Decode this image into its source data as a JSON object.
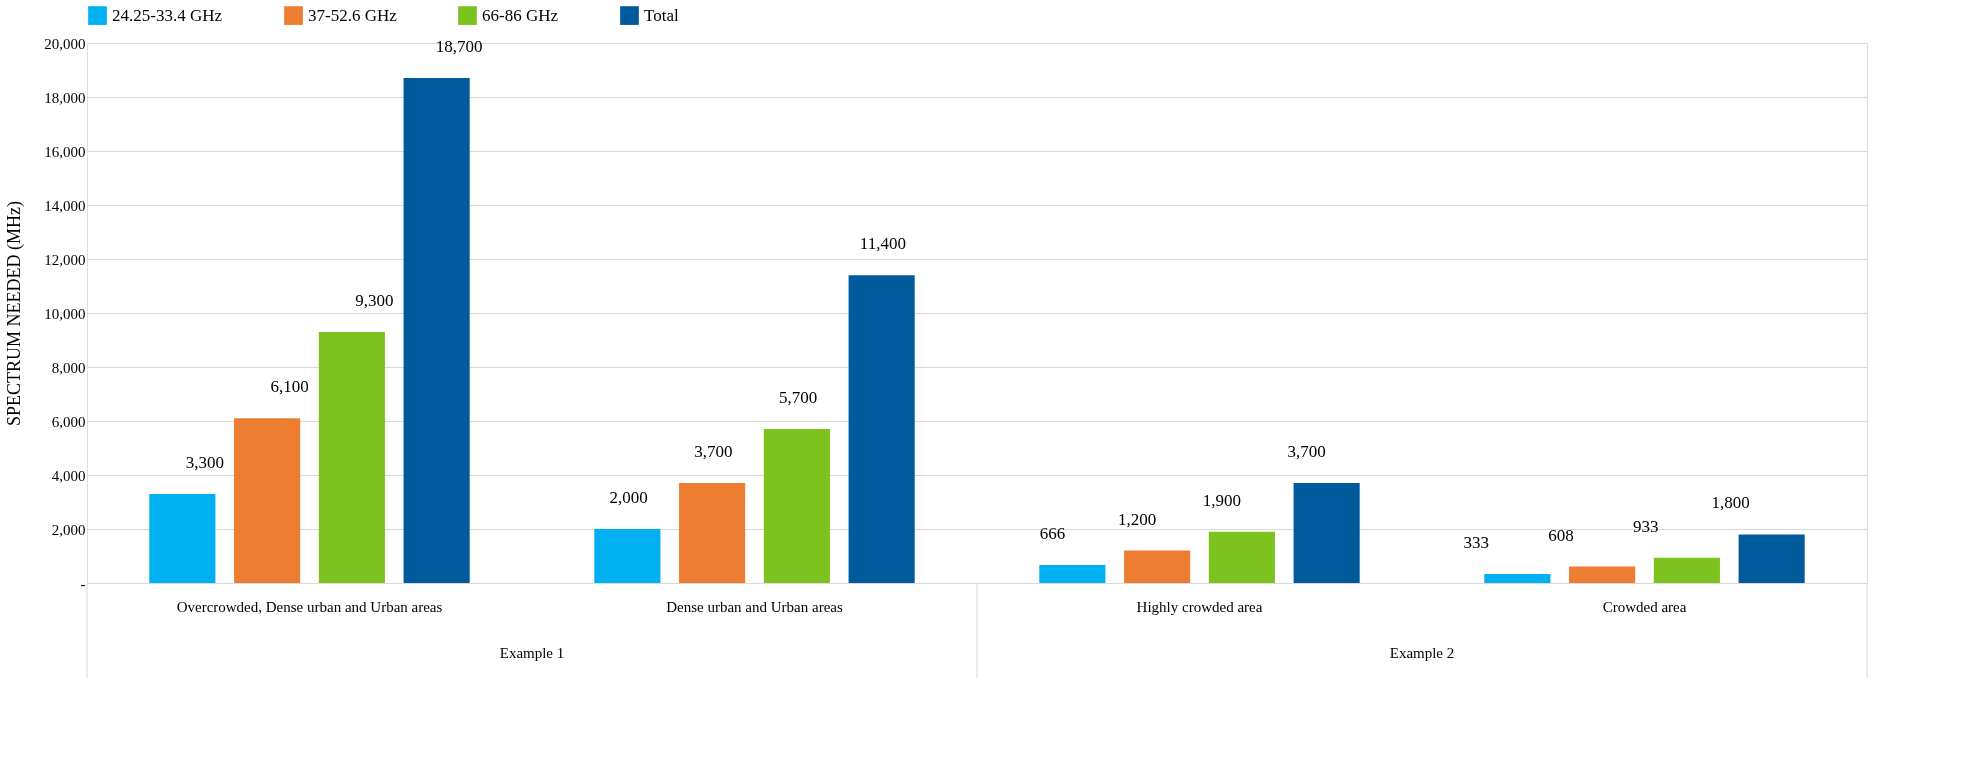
{
  "chart_data": {
    "type": "bar",
    "ylabel": "SPECTRUM NEEDED (MHz)",
    "categories": [
      "Overcrowded, Dense urban and Urban areas",
      "Dense urban and Urban areas",
      "Highly crowded area",
      "Crowded area"
    ],
    "series": [
      {
        "name": "24.25-33.4 GHz",
        "color": "#00b0f0",
        "values": [
          3300,
          2000,
          666,
          333
        ],
        "value_labels": [
          "3,300",
          "2,000",
          "666",
          "333"
        ]
      },
      {
        "name": "37-52.6 GHz",
        "color": "#ed7d31",
        "values": [
          6100,
          3700,
          1200,
          608
        ],
        "value_labels": [
          "6,100",
          "3,700",
          "1,200",
          "608"
        ]
      },
      {
        "name": "66-86 GHz",
        "color": "#7dc21e",
        "values": [
          9300,
          5700,
          1900,
          933
        ],
        "value_labels": [
          "9,300",
          "5,700",
          "1,900",
          "933"
        ]
      },
      {
        "name": "Total",
        "color": "#005a9c",
        "values": [
          18700,
          11400,
          3700,
          1800
        ],
        "value_labels": [
          "18,700",
          "11,400",
          "3,700",
          "1,800"
        ]
      }
    ],
    "ylim": [
      0,
      20000
    ],
    "yticks": [
      {
        "value": 0,
        "label": "-"
      },
      {
        "value": 2000,
        "label": "2,000"
      },
      {
        "value": 4000,
        "label": "4,000"
      },
      {
        "value": 6000,
        "label": "6,000"
      },
      {
        "value": 8000,
        "label": "8,000"
      },
      {
        "value": 10000,
        "label": "10,000"
      },
      {
        "value": 12000,
        "label": "12,000"
      },
      {
        "value": 14000,
        "label": "14,000"
      },
      {
        "value": 16000,
        "label": "16,000"
      },
      {
        "value": 18000,
        "label": "18,000"
      },
      {
        "value": 20000,
        "label": "20,000"
      }
    ],
    "grid": "y",
    "legend": "top",
    "annotations": [
      "Example 1",
      "Example 2"
    ]
  }
}
